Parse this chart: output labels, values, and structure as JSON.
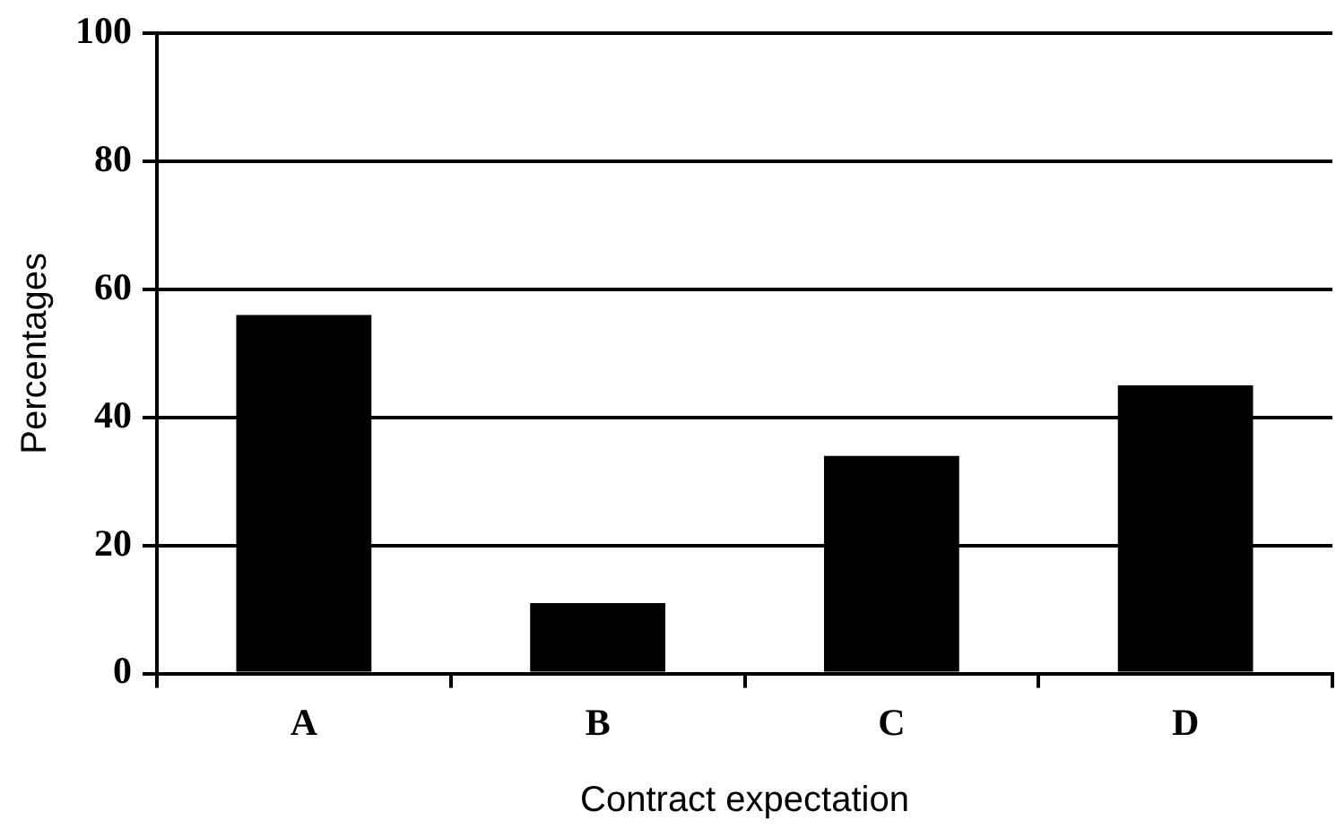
{
  "chart_data": {
    "type": "bar",
    "xlabel": "Contract expectation",
    "ylabel": "Percentages",
    "categories": [
      "A",
      "B",
      "C",
      "D"
    ],
    "values": [
      56,
      11,
      34,
      45
    ],
    "color": "#000000",
    "ylim": [
      0,
      100
    ],
    "yticks": [
      0,
      20,
      40,
      60,
      80,
      100
    ],
    "grid": "y",
    "legend": false
  }
}
